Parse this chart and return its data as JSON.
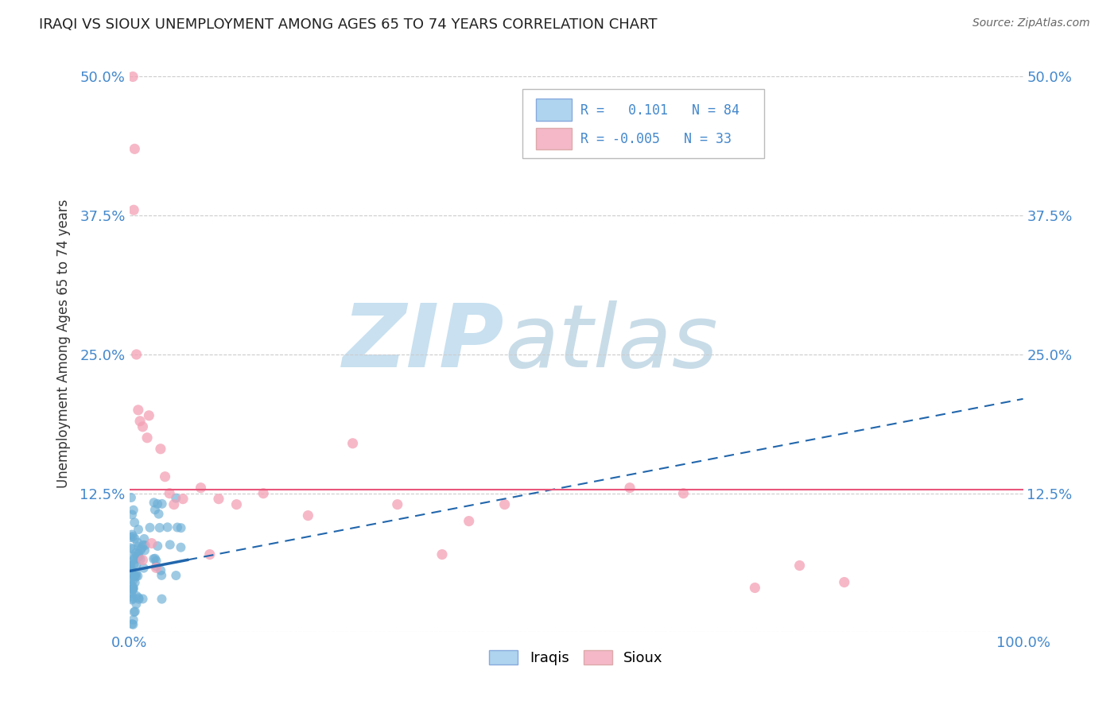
{
  "title": "IRAQI VS SIOUX UNEMPLOYMENT AMONG AGES 65 TO 74 YEARS CORRELATION CHART",
  "source": "Source: ZipAtlas.com",
  "ylabel": "Unemployment Among Ages 65 to 74 years",
  "xlim": [
    0.0,
    1.0
  ],
  "ylim": [
    0.0,
    0.52
  ],
  "x_ticks": [
    0.0,
    0.2,
    0.4,
    0.6,
    0.8,
    1.0
  ],
  "y_ticks": [
    0.0,
    0.125,
    0.25,
    0.375,
    0.5
  ],
  "iraqi_R": 0.101,
  "iraqi_N": 84,
  "sioux_R": -0.005,
  "sioux_N": 33,
  "iraqi_color": "#6baed6",
  "sioux_color": "#f4a0b5",
  "iraqi_line_color": "#2166ac",
  "sioux_line_color": "#e8567a",
  "background_color": "#ffffff",
  "grid_color": "#cccccc",
  "watermark_zip_color": "#c8e0f0",
  "watermark_atlas_color": "#c8dce8",
  "legend_box_color_iraqi": "#aed4ef",
  "legend_box_color_sioux": "#f4b8c8",
  "tick_color": "#4488cc",
  "iraqi_trend_start_x": 0.0,
  "iraqi_trend_start_y": 0.055,
  "iraqi_trend_solid_end_x": 0.065,
  "iraqi_trend_solid_end_y": 0.085,
  "iraqi_trend_dashed_end_x": 1.0,
  "iraqi_trend_dashed_end_y": 0.21,
  "sioux_trend_y": 0.128
}
